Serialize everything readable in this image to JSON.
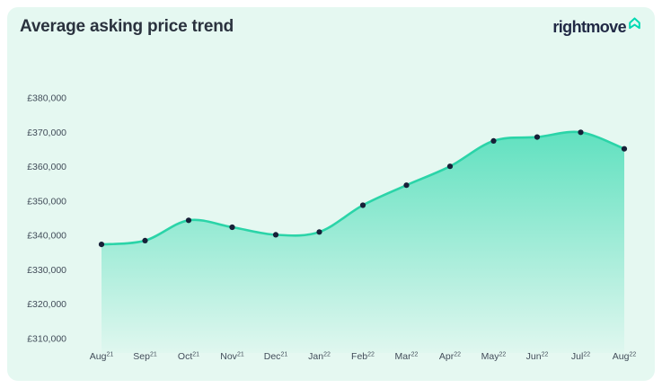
{
  "header": {
    "title": "Average asking price trend",
    "brand": {
      "name": "rightmove",
      "icon": "rightmove-house-icon"
    }
  },
  "colors": {
    "card_bg": "#e5f8f1",
    "line": "#2bd4a8",
    "area_fill": "#2fd8ad",
    "marker": "#172038",
    "title_text": "#2a323e",
    "brand_navy": "#212945",
    "brand_teal": "#00d9b2",
    "axis_text": "#414c59"
  },
  "chart_data": {
    "type": "area",
    "title": "Average asking price trend",
    "x_categories": [
      {
        "label": "Aug",
        "sup": "21"
      },
      {
        "label": "Sep",
        "sup": "21"
      },
      {
        "label": "Oct",
        "sup": "21"
      },
      {
        "label": "Nov",
        "sup": "21"
      },
      {
        "label": "Dec",
        "sup": "21"
      },
      {
        "label": "Jan",
        "sup": "22"
      },
      {
        "label": "Feb",
        "sup": "22"
      },
      {
        "label": "Mar",
        "sup": "22"
      },
      {
        "label": "Apr",
        "sup": "22"
      },
      {
        "label": "May",
        "sup": "22"
      },
      {
        "label": "Jun",
        "sup": "22"
      },
      {
        "label": "Jul",
        "sup": "22"
      },
      {
        "label": "Aug",
        "sup": "22"
      }
    ],
    "values": [
      337400,
      338500,
      344400,
      342400,
      340200,
      341000,
      348800,
      354600,
      360100,
      367500,
      368600,
      370000,
      365200
    ],
    "y_ticks": {
      "values": [
        380000,
        370000,
        360000,
        350000,
        340000,
        330000,
        320000,
        310000
      ],
      "labels": [
        "£380,000",
        "£370,000",
        "£360,000",
        "£350,000",
        "£340,000",
        "£330,000",
        "£320,000",
        "£310,000"
      ]
    },
    "xlabel": "",
    "ylabel": "",
    "ylim": [
      306000,
      384000
    ],
    "grid": false,
    "legend": false,
    "currency": "£",
    "smooth": true,
    "markers": true
  }
}
